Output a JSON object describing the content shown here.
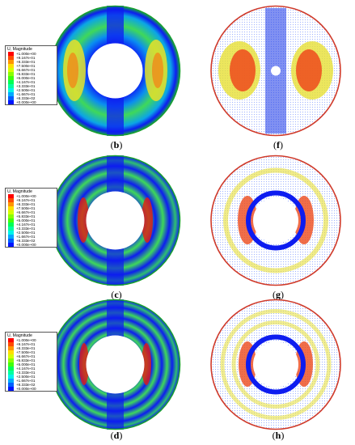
{
  "legend": {
    "title": "U, Magnitude",
    "values": [
      "+1.000e+00",
      "+9.167e-01",
      "+8.333e-01",
      "+7.500e-01",
      "+6.667e-01",
      "+5.833e-01",
      "+5.000e-01",
      "+4.167e-01",
      "+3.333e-01",
      "+2.500e-01",
      "+1.667e-01",
      "+8.333e-02",
      "+0.000e+00"
    ],
    "colors": [
      "#ff0000",
      "#ff4a00",
      "#ff9500",
      "#ffdf00",
      "#d5ff00",
      "#8aff00",
      "#40ff0a",
      "#00ff55",
      "#00ff9f",
      "#00f4e9",
      "#00aaff",
      "#005fff",
      "#0015ff"
    ]
  },
  "captions": {
    "b": "b",
    "c": "c",
    "d": "d",
    "f": "f",
    "g": "g",
    "h": "h"
  },
  "colors": {
    "low": "#0d1cf0",
    "high": "#e61a10",
    "mid": "#3ed85a"
  }
}
